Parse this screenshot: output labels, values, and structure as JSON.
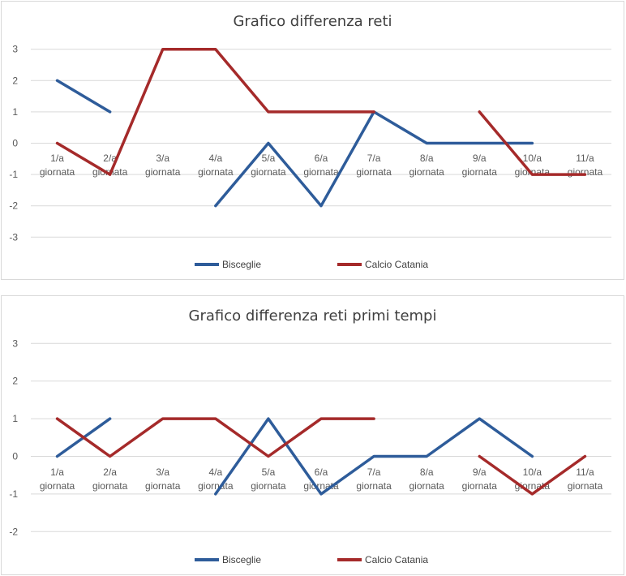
{
  "charts": [
    {
      "title": "Grafico differenza reti",
      "type": "line",
      "ylim": [
        -3,
        3
      ],
      "yticks": [
        3,
        2,
        1,
        0,
        -1,
        -2,
        -3
      ],
      "categories": [
        "1/a giornata",
        "2/a giornata",
        "3/a giornata",
        "4/a giornata",
        "5/a giornata",
        "6/a giornata",
        "7/a giornata",
        "8/a giornata",
        "9/a giornata",
        "10/a giornata",
        "11/a giornata"
      ],
      "series": [
        {
          "name": "Bisceglie",
          "color": "#2e5c9a",
          "values": [
            2,
            1,
            null,
            -2,
            0,
            -2,
            1,
            0,
            0,
            0,
            null
          ]
        },
        {
          "name": "Calcio Catania",
          "color": "#a52a2a",
          "values": [
            0,
            -1,
            3,
            3,
            1,
            1,
            1,
            null,
            1,
            -1,
            -1
          ]
        }
      ],
      "legend": "bottom",
      "grid": true
    },
    {
      "title": "Grafico differenza reti primi tempi",
      "type": "line",
      "ylim": [
        -2,
        3
      ],
      "yticks": [
        3,
        2,
        1,
        0,
        -1,
        -2
      ],
      "categories": [
        "1/a giornata",
        "2/a giornata",
        "3/a giornata",
        "4/a giornata",
        "5/a giornata",
        "6/a giornata",
        "7/a giornata",
        "8/a giornata",
        "9/a giornata",
        "10/a giornata",
        "11/a giornata"
      ],
      "series": [
        {
          "name": "Bisceglie",
          "color": "#2e5c9a",
          "values": [
            0,
            1,
            null,
            -1,
            1,
            -1,
            0,
            0,
            1,
            0,
            null
          ]
        },
        {
          "name": "Calcio Catania",
          "color": "#a52a2a",
          "values": [
            1,
            0,
            1,
            1,
            0,
            1,
            1,
            null,
            0,
            -1,
            0
          ]
        }
      ],
      "legend": "bottom",
      "grid": true
    }
  ],
  "chart_data": [
    {
      "type": "line",
      "title": "Grafico differenza reti",
      "xlabel": "",
      "ylabel": "",
      "ylim": [
        -3,
        3
      ],
      "categories": [
        "1/a giornata",
        "2/a giornata",
        "3/a giornata",
        "4/a giornata",
        "5/a giornata",
        "6/a giornata",
        "7/a giornata",
        "8/a giornata",
        "9/a giornata",
        "10/a giornata",
        "11/a giornata"
      ],
      "series": [
        {
          "name": "Bisceglie",
          "values": [
            2,
            1,
            null,
            -2,
            0,
            -2,
            1,
            0,
            0,
            0,
            null
          ]
        },
        {
          "name": "Calcio Catania",
          "values": [
            0,
            -1,
            3,
            3,
            1,
            1,
            1,
            null,
            1,
            -1,
            -1
          ]
        }
      ],
      "legend": "bottom",
      "grid": true
    },
    {
      "type": "line",
      "title": "Grafico differenza reti primi tempi",
      "xlabel": "",
      "ylabel": "",
      "ylim": [
        -2,
        3
      ],
      "categories": [
        "1/a giornata",
        "2/a giornata",
        "3/a giornata",
        "4/a giornata",
        "5/a giornata",
        "6/a giornata",
        "7/a giornata",
        "8/a giornata",
        "9/a giornata",
        "10/a giornata",
        "11/a giornata"
      ],
      "series": [
        {
          "name": "Bisceglie",
          "values": [
            0,
            1,
            null,
            -1,
            1,
            -1,
            0,
            0,
            1,
            0,
            null
          ]
        },
        {
          "name": "Calcio Catania",
          "values": [
            1,
            0,
            1,
            1,
            0,
            1,
            1,
            null,
            0,
            -1,
            0
          ]
        }
      ],
      "legend": "bottom",
      "grid": true
    }
  ]
}
